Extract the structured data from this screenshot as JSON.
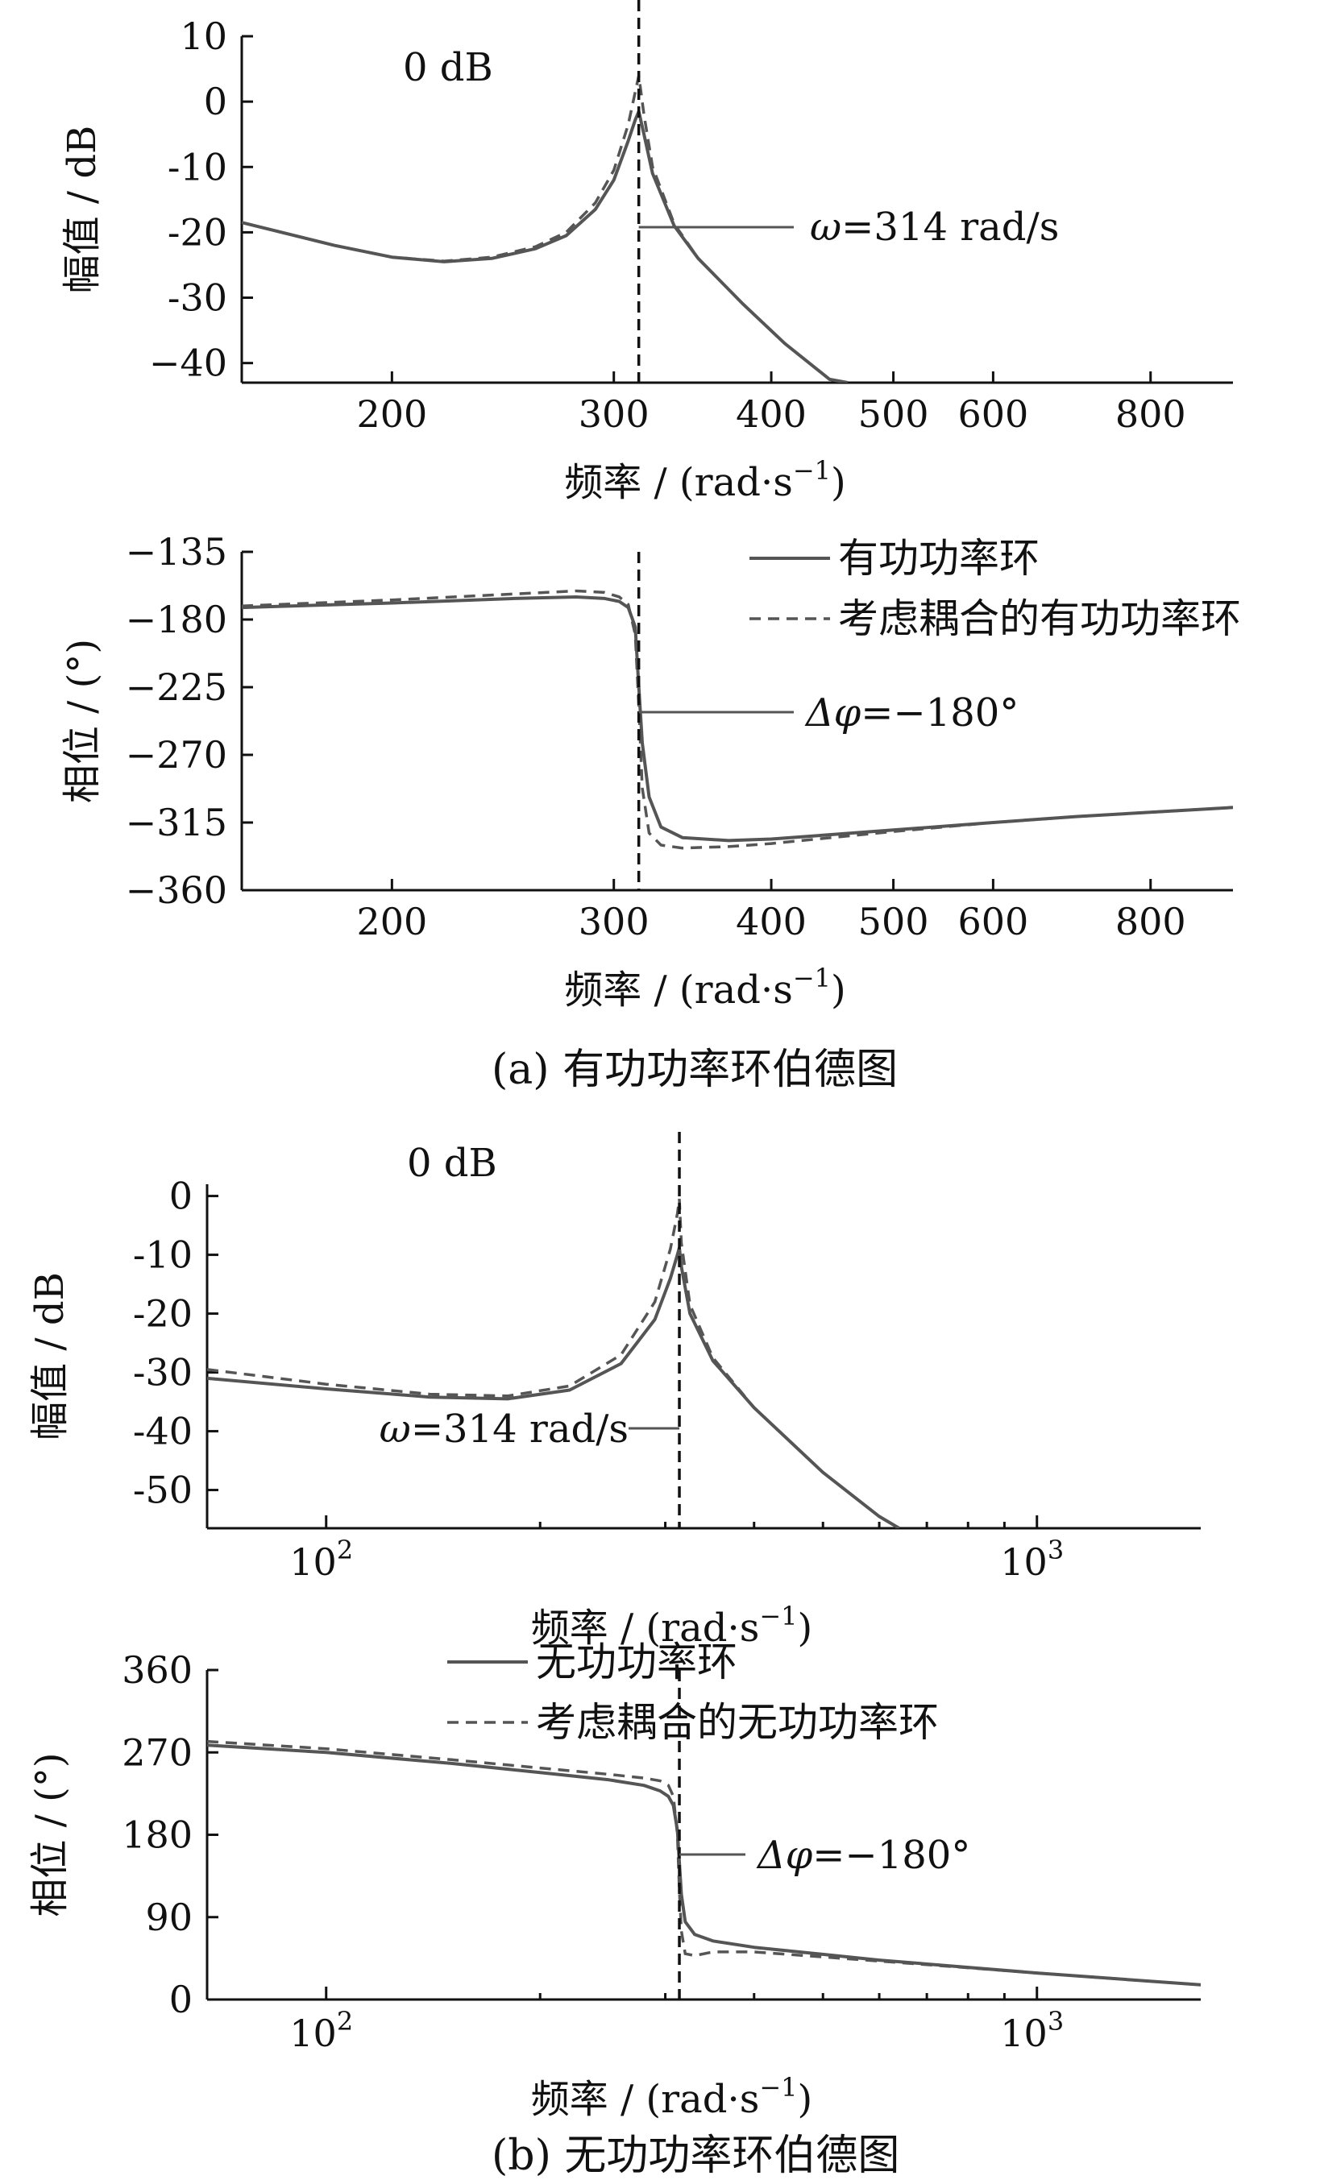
{
  "legend_a": {
    "solid": "有功功率环",
    "dashed": "考虑耦合的有功功率环"
  },
  "legend_b": {
    "solid": "无功功率环",
    "dashed": "考虑耦合的无功功率环"
  },
  "captions": {
    "a": "(a)  有功功率环伯德图",
    "b": "(b)  无功功率环伯德图"
  },
  "colors": {
    "series": "#555555",
    "axes": "#111111",
    "marker": "#111111"
  },
  "chart_data": [
    {
      "type": "line",
      "panel": "a-magnitude",
      "xscale": "log",
      "xlim": [
        152,
        930
      ],
      "ylim": [
        -43,
        10
      ],
      "xlabel": "频率 / (rad·s",
      "xlabel_sup": "−1",
      "xlabel_end": ")",
      "ylabel": "幅值 / dB",
      "xticks": [
        200,
        300,
        400,
        500,
        600,
        800
      ],
      "yticks": [
        10,
        0,
        -10,
        -20,
        -30,
        -40
      ],
      "ytick_labels": [
        "10",
        "0",
        "-10",
        "-20",
        "-30",
        "−40"
      ],
      "annotations": {
        "zero_db": "0 dB",
        "omega_prefix": "ω",
        "omega": "=314 rad/s"
      },
      "marker_x": 314,
      "series": [
        {
          "style": "solid",
          "x": [
            152,
            180,
            200,
            220,
            240,
            260,
            275,
            290,
            300,
            308,
            312,
            314,
            317,
            322,
            335,
            350,
            380,
            410,
            445,
            460
          ],
          "y": [
            -18.5,
            -22,
            -23.8,
            -24.5,
            -24,
            -22.5,
            -20.5,
            -16.5,
            -12,
            -6,
            -2.8,
            -1.5,
            -5,
            -11,
            -19,
            -24,
            -31,
            -37,
            -42.5,
            -43
          ]
        },
        {
          "style": "dashed",
          "x": [
            152,
            180,
            200,
            220,
            240,
            260,
            275,
            290,
            300,
            308,
            312,
            314,
            317,
            322,
            335,
            350
          ],
          "y": [
            -18.5,
            -22,
            -23.8,
            -24.4,
            -23.8,
            -22.2,
            -20,
            -15.5,
            -10.5,
            -3.5,
            1.5,
            4,
            -2,
            -10,
            -18.7,
            -24
          ]
        }
      ]
    },
    {
      "type": "line",
      "panel": "a-phase",
      "xscale": "log",
      "xlim": [
        152,
        930
      ],
      "ylim": [
        -360,
        -135
      ],
      "xlabel": "频率 / (rad·s",
      "xlabel_sup": "−1",
      "xlabel_end": ")",
      "ylabel": "相位 / (°)",
      "xticks": [
        200,
        300,
        400,
        500,
        600,
        800
      ],
      "yticks": [
        -135,
        -180,
        -225,
        -270,
        -315,
        -360
      ],
      "ytick_labels": [
        "−135",
        "−180",
        "−225",
        "−270",
        "−315",
        "−360"
      ],
      "annotations": {
        "delta_prefix": "Δφ",
        "delta": "=−180°"
      },
      "marker_x": 314,
      "series": [
        {
          "style": "solid",
          "x": [
            152,
            200,
            250,
            280,
            295,
            303,
            308,
            312,
            314,
            316,
            320,
            327,
            340,
            370,
            400,
            500,
            600,
            700,
            930
          ],
          "y": [
            -172,
            -169,
            -166,
            -165,
            -166,
            -168,
            -172,
            -185,
            -225,
            -262,
            -298,
            -318,
            -325,
            -327,
            -326,
            -320,
            -315,
            -311,
            -305
          ]
        },
        {
          "style": "dashed",
          "x": [
            152,
            200,
            250,
            280,
            295,
            303,
            308,
            312,
            314,
            316,
            320,
            327,
            340,
            370,
            400,
            500,
            600,
            700,
            930
          ],
          "y": [
            -171,
            -167,
            -163,
            -161,
            -162,
            -165,
            -170,
            -190,
            -238,
            -292,
            -322,
            -330,
            -332,
            -331,
            -329,
            -321,
            -315,
            -311,
            -305
          ]
        }
      ]
    },
    {
      "type": "line",
      "panel": "b-magnitude",
      "xscale": "log",
      "xlim": [
        68,
        1700
      ],
      "ylim": [
        -56.5,
        2
      ],
      "xlabel": "频率 / (rad·s",
      "xlabel_sup": "−1",
      "xlabel_end": ")",
      "ylabel": "幅值 / dB",
      "xticks_major": [
        100,
        1000
      ],
      "xtick_labels": [
        "10",
        "10"
      ],
      "xtick_exponents": [
        "2",
        "3"
      ],
      "xticks_minor": [
        200,
        300,
        400,
        500,
        600,
        700,
        800,
        900
      ],
      "yticks": [
        0,
        -10,
        -20,
        -30,
        -40,
        -50
      ],
      "ytick_labels": [
        "0",
        "-10",
        "-20",
        "-30",
        "-40",
        "-50"
      ],
      "annotations": {
        "zero_db": "0 dB",
        "omega_prefix": "ω",
        "omega": "=314 rad/s"
      },
      "marker_x": 314,
      "series": [
        {
          "style": "solid",
          "x": [
            68,
            100,
            140,
            180,
            220,
            260,
            290,
            305,
            312,
            314,
            316,
            325,
            350,
            400,
            500,
            600,
            640
          ],
          "y": [
            -31,
            -32.8,
            -34.2,
            -34.5,
            -33,
            -28.5,
            -21,
            -14,
            -10,
            -8.8,
            -12,
            -20,
            -28,
            -36,
            -47,
            -54.5,
            -56.5
          ]
        },
        {
          "style": "dashed",
          "x": [
            68,
            100,
            140,
            180,
            220,
            260,
            290,
            305,
            312,
            314,
            316,
            325,
            350,
            400
          ],
          "y": [
            -29.5,
            -32,
            -33.7,
            -34,
            -32.3,
            -27,
            -18,
            -9,
            -3,
            -0.5,
            -8,
            -18.5,
            -27.5,
            -36
          ]
        }
      ]
    },
    {
      "type": "line",
      "panel": "b-phase",
      "xscale": "log",
      "xlim": [
        68,
        1700
      ],
      "ylim": [
        0,
        360
      ],
      "xlabel": "频率 / (rad·s",
      "xlabel_sup": "−1",
      "xlabel_end": ")",
      "ylabel": "相位 / (°)",
      "xticks_major": [
        100,
        1000
      ],
      "xtick_labels": [
        "10",
        "10"
      ],
      "xtick_exponents": [
        "2",
        "3"
      ],
      "xticks_minor": [
        200,
        300,
        400,
        500,
        600,
        700,
        800,
        900
      ],
      "yticks": [
        360,
        270,
        180,
        90,
        0
      ],
      "ytick_labels": [
        "360",
        "270",
        "180",
        "90",
        "0"
      ],
      "annotations": {
        "delta_prefix": "Δφ",
        "delta": "=−180°"
      },
      "marker_x": 314,
      "series": [
        {
          "style": "solid",
          "x": [
            68,
            100,
            150,
            200,
            250,
            280,
            295,
            303,
            308,
            312,
            314,
            316,
            320,
            330,
            350,
            400,
            600,
            1000,
            1700
          ],
          "y": [
            278,
            270,
            258,
            248,
            240,
            234,
            228,
            222,
            212,
            185,
            150,
            115,
            85,
            71,
            64,
            57,
            43,
            29,
            16
          ]
        },
        {
          "style": "dashed",
          "x": [
            68,
            100,
            150,
            200,
            250,
            280,
            295,
            303,
            308,
            312,
            314,
            316,
            320,
            330,
            350,
            400,
            600,
            1000,
            1700
          ],
          "y": [
            282,
            274,
            262,
            253,
            246,
            242,
            239,
            234,
            222,
            180,
            120,
            75,
            50,
            48,
            52,
            52,
            42,
            29,
            16
          ]
        }
      ]
    }
  ]
}
